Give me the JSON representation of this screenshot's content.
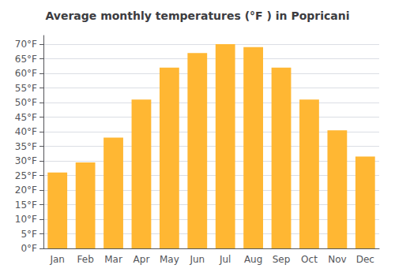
{
  "chart_data": {
    "type": "bar",
    "title": "Average monthly temperatures (°F ) in Popricani",
    "categories": [
      "Jan",
      "Feb",
      "Mar",
      "Apr",
      "May",
      "Jun",
      "Jul",
      "Aug",
      "Sep",
      "Oct",
      "Nov",
      "Dec"
    ],
    "values": [
      26,
      29.5,
      38,
      51,
      62,
      67,
      70,
      69,
      62,
      51,
      40.5,
      31.5
    ],
    "color": "#FFB733",
    "ylim": [
      0,
      73
    ],
    "yticks": [
      {
        "value": 0,
        "label": "0°F"
      },
      {
        "value": 5,
        "label": "5°F"
      },
      {
        "value": 10,
        "label": "10°F"
      },
      {
        "value": 15,
        "label": "15°F"
      },
      {
        "value": 20,
        "label": "20°F"
      },
      {
        "value": 25,
        "label": "25°F"
      },
      {
        "value": 30,
        "label": "30°F"
      },
      {
        "value": 35,
        "label": "35°F"
      },
      {
        "value": 40,
        "label": "40°F"
      },
      {
        "value": 45,
        "label": "45°F"
      },
      {
        "value": 50,
        "label": "50°F"
      },
      {
        "value": 55,
        "label": "55°F"
      },
      {
        "value": 60,
        "label": "60°F"
      },
      {
        "value": 65,
        "label": "65°F"
      },
      {
        "value": 70,
        "label": "70°F"
      }
    ],
    "grid": true
  }
}
